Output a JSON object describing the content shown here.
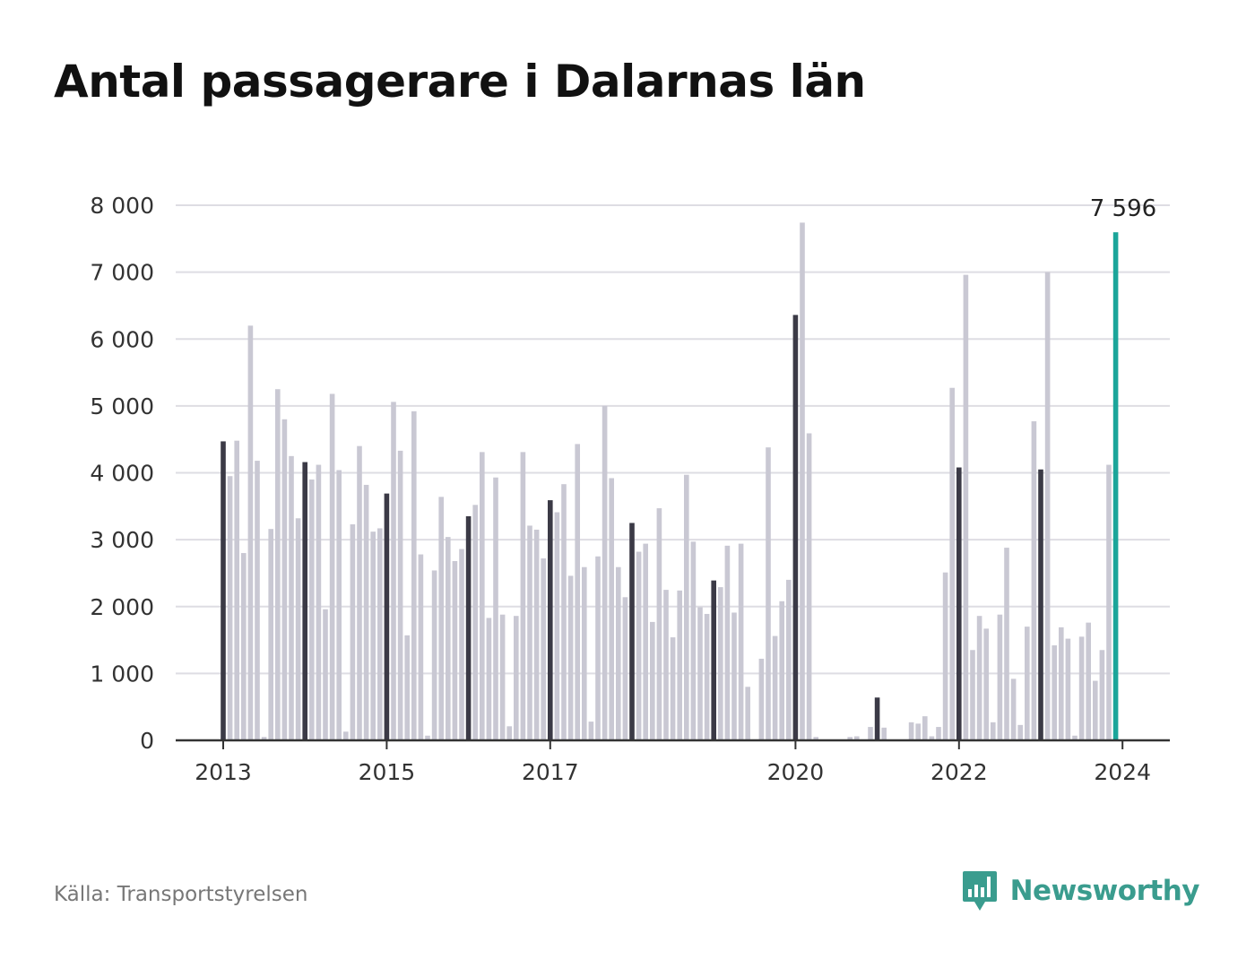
{
  "title": "Antal passagerare i Dalarnas län",
  "source": "Källa: Transportstyrelsen",
  "brand": {
    "name": "Newsworthy",
    "icon": "bar-chart-speech-bubble-icon",
    "color": "#3a9c8e"
  },
  "colors": {
    "bar_default": "#c9c8d3",
    "bar_january": "#3b3a46",
    "bar_latest": "#1ba59a",
    "grid": "#dedde3",
    "axis": "#333333"
  },
  "chart_data": {
    "type": "bar",
    "title": "Antal passagerare i Dalarnas län",
    "xlabel": "",
    "ylabel": "",
    "ylim": [
      0,
      8000
    ],
    "yticks": [
      0,
      1000,
      2000,
      3000,
      4000,
      5000,
      6000,
      7000,
      8000
    ],
    "ytick_labels": [
      "0",
      "1 000",
      "2 000",
      "3 000",
      "4 000",
      "5 000",
      "6 000",
      "7 000",
      "8 000"
    ],
    "xtick_labels": [
      {
        "label": "2013",
        "index": 0
      },
      {
        "label": "2015",
        "index": 24
      },
      {
        "label": "2017",
        "index": 48
      },
      {
        "label": "2020",
        "index": 84
      },
      {
        "label": "2022",
        "index": 108
      },
      {
        "label": "2024",
        "index": 132
      }
    ],
    "first_period": "2013-01",
    "interval": "month",
    "highlight": "January bars dark, latest bar teal",
    "annotation": {
      "index": 132,
      "text": "7 596"
    },
    "grid": true,
    "values": [
      4470,
      3950,
      4480,
      2800,
      6200,
      4180,
      50,
      3160,
      5250,
      4800,
      4250,
      3320,
      4160,
      3900,
      4120,
      1960,
      5180,
      4040,
      130,
      3230,
      4400,
      3820,
      3120,
      3170,
      3690,
      5060,
      4330,
      1570,
      4920,
      2780,
      70,
      2540,
      3640,
      3040,
      2680,
      2860,
      3350,
      3520,
      4310,
      1830,
      3930,
      1880,
      210,
      1860,
      4310,
      3210,
      3150,
      2720,
      3590,
      3410,
      3830,
      2460,
      4430,
      2590,
      280,
      2750,
      5000,
      3920,
      2590,
      2140,
      3250,
      2820,
      2940,
      1770,
      3470,
      2250,
      1540,
      2240,
      3970,
      2970,
      1990,
      1890,
      2390,
      2290,
      2910,
      1910,
      2940,
      800,
      0,
      1220,
      4380,
      1560,
      2080,
      2400,
      6360,
      7740,
      4590,
      50,
      0,
      0,
      0,
      0,
      50,
      60,
      0,
      200,
      640,
      190,
      0,
      0,
      0,
      270,
      250,
      360,
      60,
      200,
      2510,
      5270,
      4080,
      6960,
      1350,
      1860,
      1670,
      270,
      1880,
      2880,
      920,
      230,
      1700,
      4770,
      4050,
      7000,
      1420,
      1690,
      1520,
      70,
      1550,
      1760,
      890,
      1350,
      4120,
      7596
    ]
  }
}
